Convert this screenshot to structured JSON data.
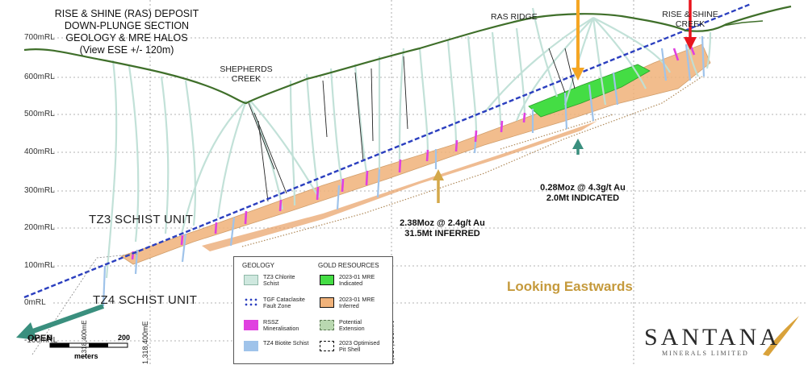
{
  "title_lines": [
    "RISE & SHINE (RAS) DEPOSIT",
    "DOWN-PLUNGE SECTION",
    "GEOLOGY & MRE HALOS",
    "(View ESE +/- 120m)"
  ],
  "rl_labels": [
    "700mRL",
    "600mRL",
    "500mRL",
    "400mRL",
    "300mRL",
    "200mRL",
    "100mRL",
    "0mRL",
    "-100mRL"
  ],
  "place_names": {
    "shepherds_creek": [
      "SHEPHERDS",
      "CREEK"
    ],
    "ras_ridge": "RAS RIDGE",
    "rise_shine_creek": [
      "RISE & SHINE",
      "CREEK"
    ]
  },
  "units": {
    "tz3": "TZ3 SCHIST UNIT",
    "tz4": "TZ4 SCHIST UNIT"
  },
  "resources": {
    "indicated": [
      "0.28Moz @ 4.3g/t Au",
      "2.0Mt INDICATED"
    ],
    "inferred": [
      "2.38Moz @ 2.4g/t Au",
      "31.5Mt INFERRED"
    ]
  },
  "looking": "Looking Eastwards",
  "open_label": "OPEN",
  "scale": {
    "zero": "0",
    "max": "200",
    "unit": "meters"
  },
  "grid_labels": {
    "left": "1,318,400mE",
    "right": "5,017,600mN",
    "small": "1,318,400mE"
  },
  "legend": {
    "geology_heading": "GEOLOGY",
    "resources_heading": "GOLD RESOURCES",
    "geology_items": [
      {
        "label": "TZ3 Chlorite Schist",
        "color": "#cfe8df"
      },
      {
        "label": "TGF Cataclasite Fault Zone",
        "color": "#2b3fbf"
      },
      {
        "label": "RSSZ Mineralisation",
        "color": "#e040e0"
      },
      {
        "label": "TZ4 Biotite Schist",
        "color": "#9fc3ea"
      }
    ],
    "resource_items": [
      {
        "label": "2023-01 MRE Indicated",
        "color": "#44dd44"
      },
      {
        "label": "2023-01 MRE Inferred",
        "color": "#f0b27a"
      },
      {
        "label": "Potential Extension",
        "color": "#b9d8b0"
      },
      {
        "label": "2023 Optimised Pit Shell",
        "color": "#ffffff"
      }
    ]
  },
  "logo": {
    "name": "SANTANA",
    "sub": "MINERALS LIMITED"
  },
  "colors": {
    "topography": "#3f6f2a",
    "fault": "#2b3fbf",
    "chlorite_hole": "#bfe0d6",
    "biotite_hole": "#9fc3ea",
    "mineralisation": "#e040e0",
    "inferred": "#f0b27a",
    "indicated": "#44dd44",
    "arrow_gold": "#f5a623",
    "arrow_red": "#e8141c",
    "arrow_teal": "#3a8f7e",
    "arrow_tan": "#d4a84a",
    "looking_text": "#c59a3c"
  }
}
